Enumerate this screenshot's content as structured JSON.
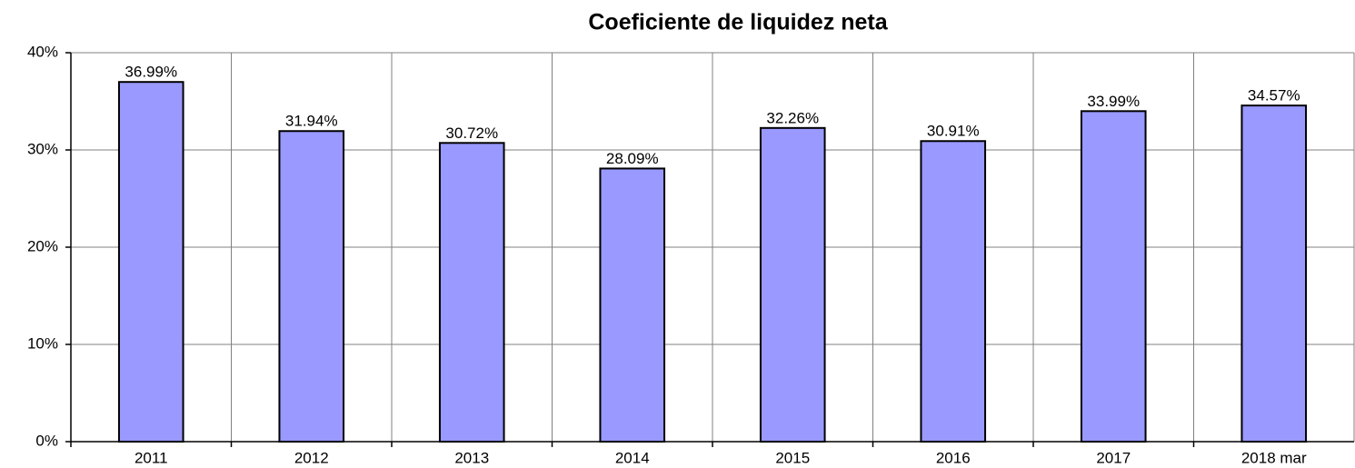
{
  "chart_data": {
    "type": "bar",
    "title": "Coeficiente de liquidez neta",
    "categories": [
      "2011",
      "2012",
      "2013",
      "2014",
      "2015",
      "2016",
      "2017",
      "2018 mar"
    ],
    "values": [
      36.99,
      31.94,
      30.72,
      28.09,
      32.26,
      30.91,
      33.99,
      34.57
    ],
    "value_labels": [
      "36.99%",
      "31.94%",
      "30.72%",
      "28.09%",
      "32.26%",
      "30.91%",
      "33.99%",
      "34.57%"
    ],
    "color": "#9999ff",
    "ylim": [
      0,
      40
    ],
    "yticks": [
      {
        "value": 0,
        "label": "0%"
      },
      {
        "value": 10,
        "label": "10%"
      },
      {
        "value": 20,
        "label": "20%"
      },
      {
        "value": 30,
        "label": "30%"
      },
      {
        "value": 40,
        "label": "40%"
      }
    ],
    "grid": true
  }
}
